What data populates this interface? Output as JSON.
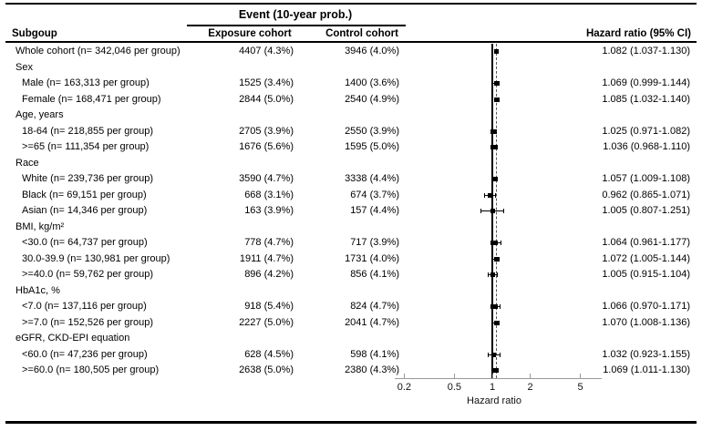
{
  "figure": {
    "header": {
      "event_group_label": "Event (10-year prob.)",
      "subgroup_col": "Subgoup",
      "exposure_col": "Exposure cohort",
      "control_col": "Control cohort",
      "hazard_col": "Hazard ratio (95% CI)"
    }
  },
  "chart_data": {
    "type": "scatter",
    "subtype": "forest-plot",
    "title": "",
    "xlabel": "Hazard ratio",
    "ylabel": "",
    "x_scale": "log",
    "x_ticks": [
      "0.2",
      "0.5",
      "1",
      "2",
      "5"
    ],
    "x_tick_values": [
      0.2,
      0.5,
      1,
      2,
      5
    ],
    "xlim": [
      0.17,
      6.5
    ],
    "reference_line": 1,
    "dashed_line": 1.082,
    "legend": "none",
    "grid": false,
    "style": {
      "marker_color": "#000000",
      "ci_color": "#000000",
      "axis_color": "#999999",
      "reference_line_color": "#000000",
      "dashed_line_color": "#555555",
      "text_color": "#000000"
    },
    "rows": [
      {
        "kind": "data",
        "indent": 0,
        "label": "Whole cohort (n= 342,046 per group)",
        "exposure": "4407 (4.3%)",
        "control": "3946 (4.0%)",
        "hr": 1.082,
        "ci_low": 1.037,
        "ci_high": 1.13,
        "hr_text": "1.082 (1.037-1.130)"
      },
      {
        "kind": "section",
        "indent": 0,
        "label": "Sex"
      },
      {
        "kind": "data",
        "indent": 1,
        "label": "Male (n= 163,313 per group)",
        "exposure": "1525 (3.4%)",
        "control": "1400 (3.6%)",
        "hr": 1.069,
        "ci_low": 0.999,
        "ci_high": 1.144,
        "hr_text": "1.069 (0.999-1.144)"
      },
      {
        "kind": "data",
        "indent": 1,
        "label": "Female (n= 168,471 per group)",
        "exposure": "2844 (5.0%)",
        "control": "2540 (4.9%)",
        "hr": 1.085,
        "ci_low": 1.032,
        "ci_high": 1.14,
        "hr_text": "1.085 (1.032-1.140)"
      },
      {
        "kind": "section",
        "indent": 0,
        "label": "Age, years"
      },
      {
        "kind": "data",
        "indent": 1,
        "label": "18-64 (n= 218,855 per group)",
        "exposure": "2705 (3.9%)",
        "control": "2550 (3.9%)",
        "hr": 1.025,
        "ci_low": 0.971,
        "ci_high": 1.082,
        "hr_text": "1.025 (0.971-1.082)"
      },
      {
        "kind": "data",
        "indent": 1,
        "label": ">=65 (n= 111,354 per group)",
        "exposure": "1676 (5.6%)",
        "control": "1595 (5.0%)",
        "hr": 1.036,
        "ci_low": 0.968,
        "ci_high": 1.11,
        "hr_text": "1.036 (0.968-1.110)"
      },
      {
        "kind": "section",
        "indent": 0,
        "label": "Race"
      },
      {
        "kind": "data",
        "indent": 1,
        "label": "White (n= 239,736 per group)",
        "exposure": "3590 (4.7%)",
        "control": "3338 (4.4%)",
        "hr": 1.057,
        "ci_low": 1.009,
        "ci_high": 1.108,
        "hr_text": "1.057 (1.009-1.108)"
      },
      {
        "kind": "data",
        "indent": 1,
        "label": "Black (n= 69,151 per group)",
        "exposure": "668 (3.1%)",
        "control": "674 (3.7%)",
        "hr": 0.962,
        "ci_low": 0.865,
        "ci_high": 1.071,
        "hr_text": "0.962 (0.865-1.071)"
      },
      {
        "kind": "data",
        "indent": 1,
        "label": "Asian (n= 14,346 per group)",
        "exposure": "163 (3.9%)",
        "control": "157 (4.4%)",
        "hr": 1.005,
        "ci_low": 0.807,
        "ci_high": 1.251,
        "hr_text": "1.005 (0.807-1.251)"
      },
      {
        "kind": "section",
        "indent": 0,
        "label": "BMI, kg/m²"
      },
      {
        "kind": "data",
        "indent": 1,
        "label": "<30.0 (n= 64,737 per group)",
        "exposure": "778 (4.7%)",
        "control": "717 (3.9%)",
        "hr": 1.064,
        "ci_low": 0.961,
        "ci_high": 1.177,
        "hr_text": "1.064 (0.961-1.177)"
      },
      {
        "kind": "data",
        "indent": 1,
        "label": "30.0-39.9 (n= 130,981 per group)",
        "exposure": "1911 (4.7%)",
        "control": "1731 (4.0%)",
        "hr": 1.072,
        "ci_low": 1.005,
        "ci_high": 1.144,
        "hr_text": "1.072 (1.005-1.144)"
      },
      {
        "kind": "data",
        "indent": 1,
        "label": ">=40.0 (n= 59,762 per group)",
        "exposure": "896 (4.2%)",
        "control": "856 (4.1%)",
        "hr": 1.005,
        "ci_low": 0.915,
        "ci_high": 1.104,
        "hr_text": "1.005 (0.915-1.104)"
      },
      {
        "kind": "section",
        "indent": 0,
        "label": "HbA1c, %"
      },
      {
        "kind": "data",
        "indent": 1,
        "label": "<7.0 (n= 137,116 per group)",
        "exposure": "918 (5.4%)",
        "control": "824 (4.7%)",
        "hr": 1.066,
        "ci_low": 0.97,
        "ci_high": 1.171,
        "hr_text": "1.066 (0.970-1.171)"
      },
      {
        "kind": "data",
        "indent": 1,
        "label": ">=7.0 (n= 152,526 per group)",
        "exposure": "2227 (5.0%)",
        "control": "2041 (4.7%)",
        "hr": 1.07,
        "ci_low": 1.008,
        "ci_high": 1.136,
        "hr_text": "1.070 (1.008-1.136)"
      },
      {
        "kind": "section",
        "indent": 0,
        "label": "eGFR, CKD-EPI equation"
      },
      {
        "kind": "data",
        "indent": 1,
        "label": "<60.0 (n= 47,236 per group)",
        "exposure": "628 (4.5%)",
        "control": "598 (4.1%)",
        "hr": 1.032,
        "ci_low": 0.923,
        "ci_high": 1.155,
        "hr_text": "1.032 (0.923-1.155)"
      },
      {
        "kind": "data",
        "indent": 1,
        "label": ">=60.0 (n= 180,505 per group)",
        "exposure": "2638 (5.0%)",
        "control": "2380 (4.3%)",
        "hr": 1.069,
        "ci_low": 1.011,
        "ci_high": 1.13,
        "hr_text": "1.069 (1.011-1.130)"
      }
    ]
  }
}
